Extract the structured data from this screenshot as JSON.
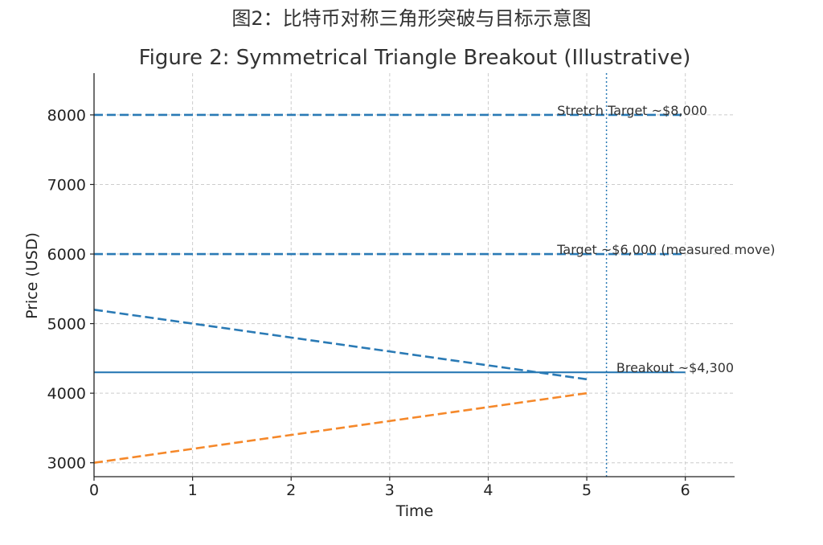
{
  "figure": {
    "suptitle": "图2：比特币对称三角形突破与目标示意图",
    "colors": {
      "blue": "#2a7ab5",
      "orange": "#f5882a",
      "grid": "#cccccc",
      "axis": "#222222"
    }
  },
  "chart_data": {
    "type": "line",
    "title": "Figure 2: Symmetrical Triangle Breakout (Illustrative)",
    "xlabel": "Time",
    "ylabel": "Price (USD)",
    "xlim": [
      0,
      6.5
    ],
    "ylim": [
      2800,
      8600
    ],
    "xticks": [
      0,
      1,
      2,
      3,
      4,
      5,
      6
    ],
    "yticks": [
      3000,
      4000,
      5000,
      6000,
      7000,
      8000
    ],
    "grid": true,
    "series": [
      {
        "id": "resistance",
        "color": "#2a7ab5",
        "style": "dashed",
        "x": [
          0,
          5
        ],
        "y": [
          5200,
          4200
        ]
      },
      {
        "id": "support",
        "color": "#f5882a",
        "style": "dashed",
        "x": [
          0,
          5
        ],
        "y": [
          3000,
          4000
        ]
      },
      {
        "id": "breakout-level",
        "color": "#2a7ab5",
        "style": "solid",
        "x": [
          0,
          6
        ],
        "y": [
          4300,
          4300
        ]
      },
      {
        "id": "target-level",
        "color": "#2a7ab5",
        "style": "dashed",
        "x": [
          0,
          6
        ],
        "y": [
          6000,
          6000
        ]
      },
      {
        "id": "stretch-target-level",
        "color": "#2a7ab5",
        "style": "dashed",
        "x": [
          0,
          6
        ],
        "y": [
          8000,
          8000
        ]
      }
    ],
    "vlines": [
      {
        "id": "breakout-time",
        "x": 5.2,
        "color": "#2a7ab5",
        "style": "dotted"
      }
    ],
    "annotations": [
      {
        "id": "stretch-target",
        "text": "Stretch Target ~$8,000",
        "x": 4.7,
        "y": 8000
      },
      {
        "id": "target",
        "text": "Target ~$6,000 (measured move)",
        "x": 4.7,
        "y": 6000
      },
      {
        "id": "breakout",
        "text": "Breakout ~$4,300",
        "x": 5.3,
        "y": 4300
      }
    ]
  }
}
